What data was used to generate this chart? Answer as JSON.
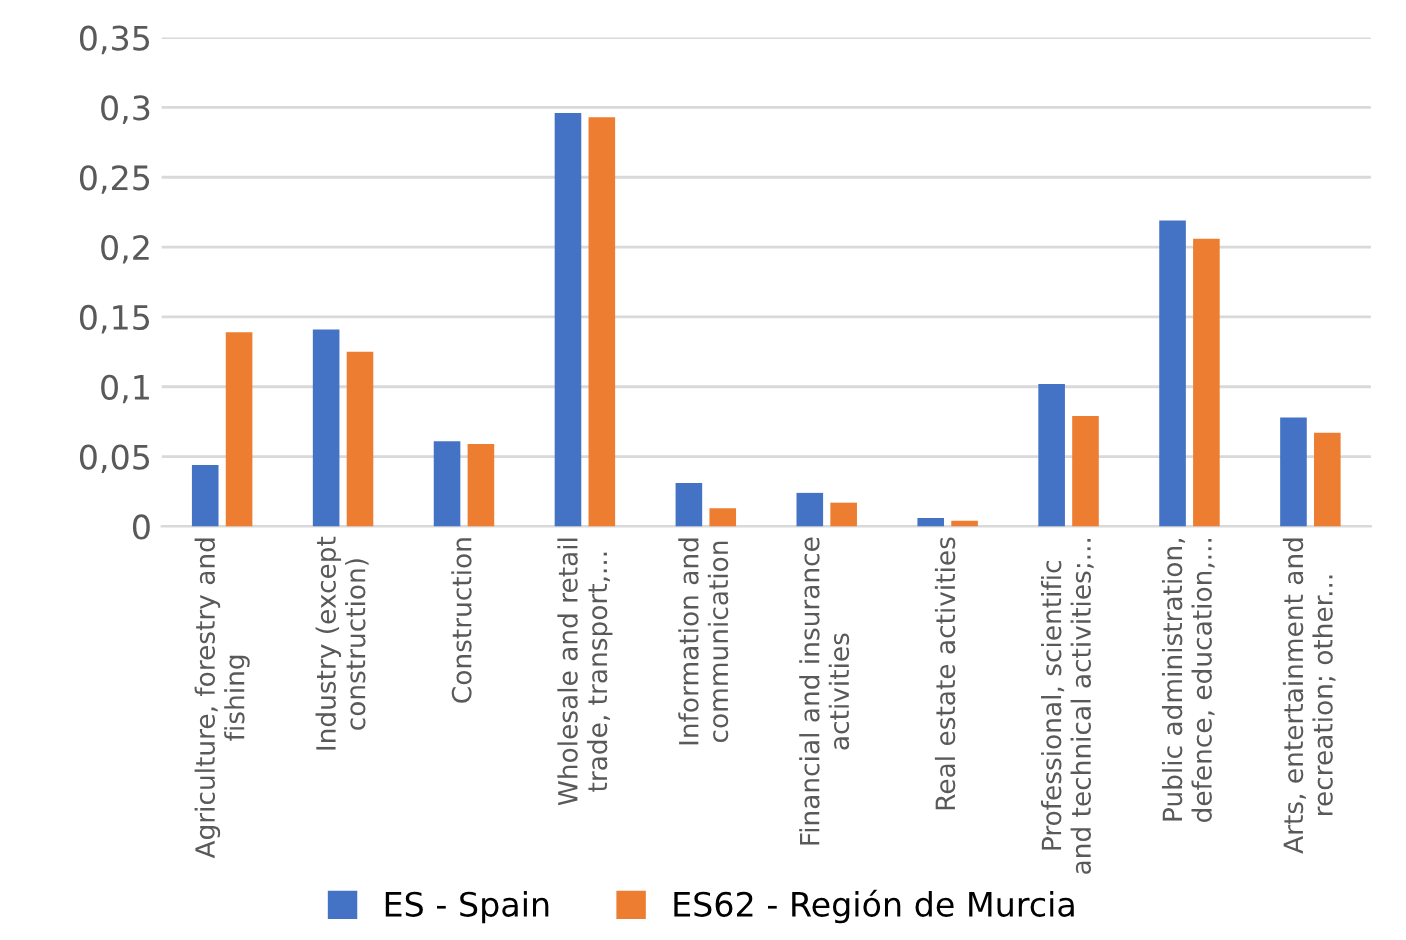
{
  "chart_data": {
    "type": "bar",
    "categories": [
      "Agriculture, forestry and\nfishing",
      "Industry (except\nconstruction)",
      "Construction",
      "Wholesale and retail\ntrade, transport,...",
      "Information and\ncommunication",
      "Financial and insurance\nactivities",
      "Real estate activities",
      "Professional, scientific\nand technical activities;...",
      "Public administration,\ndefence, education,...",
      "Arts, entertainment and\nrecreation; other..."
    ],
    "series": [
      {
        "name": "ES - Spain",
        "color": "#4472c4",
        "values": [
          0.044,
          0.141,
          0.061,
          0.296,
          0.031,
          0.024,
          0.006,
          0.102,
          0.219,
          0.078
        ]
      },
      {
        "name": "ES62 - Región de Murcia",
        "color": "#ed7d31",
        "values": [
          0.139,
          0.125,
          0.059,
          0.293,
          0.013,
          0.017,
          0.004,
          0.079,
          0.206,
          0.067
        ]
      }
    ],
    "ylim": [
      0,
      0.35
    ],
    "yticks": [
      {
        "value": 0,
        "label": "0"
      },
      {
        "value": 0.05,
        "label": "0,05"
      },
      {
        "value": 0.1,
        "label": "0,1"
      },
      {
        "value": 0.15,
        "label": "0,15"
      },
      {
        "value": 0.2,
        "label": "0,2"
      },
      {
        "value": 0.25,
        "label": "0,25"
      },
      {
        "value": 0.3,
        "label": "0,3"
      },
      {
        "value": 0.35,
        "label": "0,35"
      }
    ],
    "grid": "y",
    "legend": "bottom"
  }
}
